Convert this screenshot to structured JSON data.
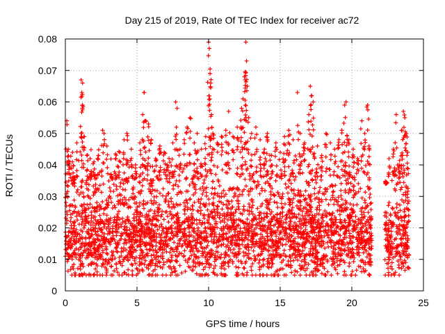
{
  "chart_data": {
    "type": "scatter",
    "title": "Day 215 of 2019, Rate Of TEC Index for receiver ac72",
    "xlabel": "GPS time / hours",
    "ylabel": "ROTI / TECUs",
    "xlim": [
      0,
      25
    ],
    "ylim": [
      0,
      0.08
    ],
    "xticks": [
      0,
      5,
      10,
      15,
      20,
      25
    ],
    "yticks": [
      0,
      0.01,
      0.02,
      0.03,
      0.04,
      0.05,
      0.06,
      0.07,
      0.08
    ],
    "xtick_labels": [
      "0",
      "5",
      "10",
      "15",
      "20",
      "25"
    ],
    "ytick_labels": [
      "0",
      "0.01",
      "0.02",
      "0.03",
      "0.04",
      "0.05",
      "0.06",
      "0.07",
      "0.08"
    ],
    "grid": true,
    "marker": "+",
    "marker_color": "#ff0000",
    "data_gap_hours": [
      21.4,
      22.3
    ],
    "series": [
      {
        "name": "ROTI",
        "color": "#ff0000",
        "points": [
          [
            0.1,
            0.054
          ],
          [
            0.2,
            0.045
          ],
          [
            0.3,
            0.041
          ],
          [
            0.5,
            0.044
          ],
          [
            0.6,
            0.036
          ],
          [
            0.8,
            0.047
          ],
          [
            1.1,
            0.067
          ],
          [
            1.15,
            0.063
          ],
          [
            1.2,
            0.059
          ],
          [
            1.2,
            0.066
          ],
          [
            1.3,
            0.049
          ],
          [
            1.5,
            0.043
          ],
          [
            1.8,
            0.038
          ],
          [
            2.0,
            0.041
          ],
          [
            2.3,
            0.043
          ],
          [
            2.6,
            0.051
          ],
          [
            2.7,
            0.05
          ],
          [
            2.9,
            0.046
          ],
          [
            3.2,
            0.037
          ],
          [
            3.5,
            0.042
          ],
          [
            3.8,
            0.044
          ],
          [
            4.1,
            0.048
          ],
          [
            4.3,
            0.05
          ],
          [
            4.6,
            0.045
          ],
          [
            4.9,
            0.04
          ],
          [
            5.2,
            0.047
          ],
          [
            5.4,
            0.056
          ],
          [
            5.5,
            0.063
          ],
          [
            5.6,
            0.054
          ],
          [
            5.8,
            0.053
          ],
          [
            6.0,
            0.048
          ],
          [
            6.3,
            0.042
          ],
          [
            6.6,
            0.046
          ],
          [
            6.9,
            0.044
          ],
          [
            7.1,
            0.04
          ],
          [
            7.5,
            0.047
          ],
          [
            7.7,
            0.06
          ],
          [
            7.8,
            0.058
          ],
          [
            8.0,
            0.045
          ],
          [
            8.3,
            0.048
          ],
          [
            8.5,
            0.052
          ],
          [
            8.7,
            0.055
          ],
          [
            9.0,
            0.047
          ],
          [
            9.2,
            0.05
          ],
          [
            9.5,
            0.045
          ],
          [
            9.8,
            0.049
          ],
          [
            10.0,
            0.079
          ],
          [
            10.05,
            0.077
          ],
          [
            10.1,
            0.069
          ],
          [
            10.15,
            0.066
          ],
          [
            10.2,
            0.056
          ],
          [
            10.3,
            0.05
          ],
          [
            10.6,
            0.047
          ],
          [
            10.9,
            0.049
          ],
          [
            11.2,
            0.051
          ],
          [
            11.4,
            0.057
          ],
          [
            11.7,
            0.049
          ],
          [
            12.0,
            0.052
          ],
          [
            12.3,
            0.058
          ],
          [
            12.4,
            0.061
          ],
          [
            12.5,
            0.068
          ],
          [
            12.55,
            0.067
          ],
          [
            12.6,
            0.079
          ],
          [
            12.65,
            0.073
          ],
          [
            12.7,
            0.065
          ],
          [
            12.8,
            0.055
          ],
          [
            13.0,
            0.05
          ],
          [
            13.3,
            0.052
          ],
          [
            13.6,
            0.048
          ],
          [
            13.9,
            0.045
          ],
          [
            14.1,
            0.05
          ],
          [
            14.4,
            0.043
          ],
          [
            14.7,
            0.047
          ],
          [
            15.0,
            0.044
          ],
          [
            15.3,
            0.049
          ],
          [
            15.6,
            0.051
          ],
          [
            15.9,
            0.048
          ],
          [
            16.2,
            0.063
          ],
          [
            16.4,
            0.05
          ],
          [
            16.7,
            0.047
          ],
          [
            17.0,
            0.056
          ],
          [
            17.1,
            0.065
          ],
          [
            17.2,
            0.062
          ],
          [
            17.3,
            0.06
          ],
          [
            17.6,
            0.046
          ],
          [
            17.9,
            0.043
          ],
          [
            18.2,
            0.05
          ],
          [
            18.5,
            0.047
          ],
          [
            18.8,
            0.045
          ],
          [
            19.1,
            0.048
          ],
          [
            19.3,
            0.051
          ],
          [
            19.5,
            0.059
          ],
          [
            19.6,
            0.06
          ],
          [
            19.8,
            0.048
          ],
          [
            20.1,
            0.045
          ],
          [
            20.4,
            0.042
          ],
          [
            20.7,
            0.054
          ],
          [
            20.9,
            0.05
          ],
          [
            21.1,
            0.059
          ],
          [
            21.2,
            0.046
          ],
          [
            22.4,
            0.034
          ],
          [
            22.6,
            0.042
          ],
          [
            22.9,
            0.045
          ],
          [
            23.1,
            0.056
          ],
          [
            23.3,
            0.04
          ],
          [
            23.5,
            0.051
          ],
          [
            23.6,
            0.057
          ],
          [
            23.7,
            0.055
          ],
          [
            23.8,
            0.05
          ],
          [
            23.9,
            0.044
          ]
        ],
        "band": {
          "description_values": "dense cloud of points between roughly 0.005 and 0.035 across all hours",
          "segments": [
            [
              0.0,
              21.4
            ],
            [
              22.3,
              24.0
            ]
          ],
          "typical_min": 0.005,
          "typical_center": 0.016,
          "typical_max": 0.035
        }
      }
    ]
  }
}
